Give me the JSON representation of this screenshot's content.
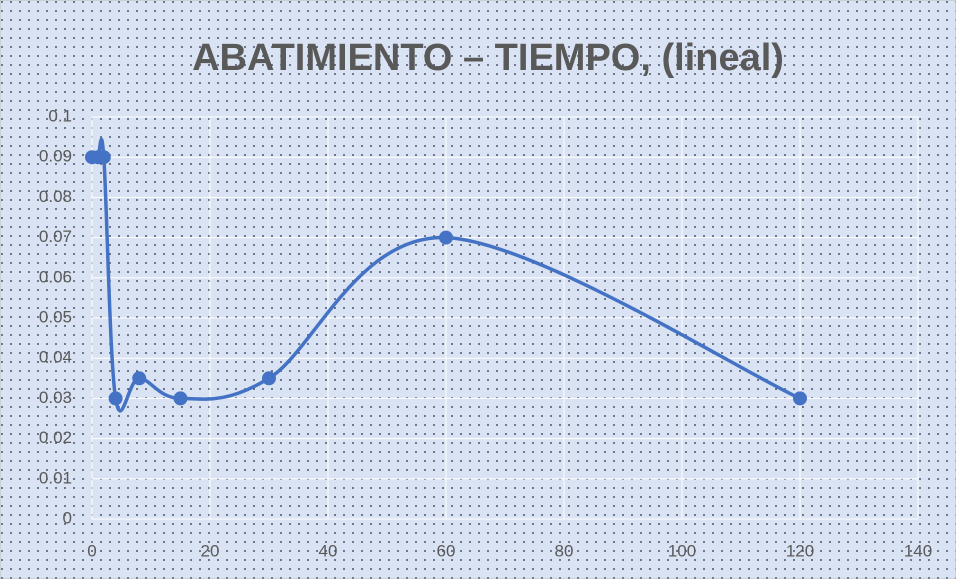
{
  "chart_data": {
    "type": "line",
    "title": "ABATIMIENTO – TIEMPO, (lineal)",
    "x": [
      0,
      1,
      2,
      4,
      8,
      15,
      30,
      60,
      120
    ],
    "series": [
      {
        "color": "#4472c4",
        "values": [
          0.09,
          0.09,
          0.09,
          0.03,
          0.035,
          0.03,
          0.035,
          0.07,
          0.03
        ]
      }
    ],
    "xlim": [
      0,
      140
    ],
    "xticks": [
      0,
      20,
      40,
      60,
      80,
      100,
      120,
      140
    ],
    "ylim": [
      0,
      0.1
    ],
    "yticks": [
      0,
      0.01,
      0.02,
      0.03,
      0.04,
      0.05,
      0.06,
      0.07,
      0.08,
      0.09,
      0.1
    ],
    "grid": true,
    "smooth": true
  }
}
